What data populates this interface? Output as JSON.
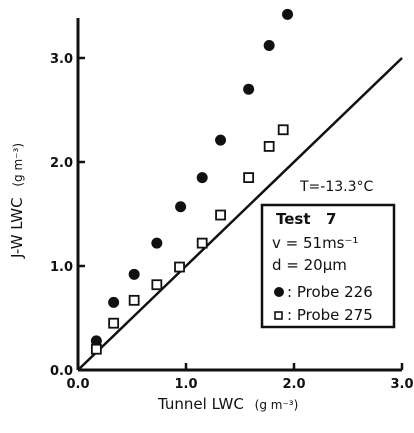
{
  "chart_data": {
    "type": "scatter",
    "xlabel": "Tunnel  LWC",
    "xlabel_unit": "(g m⁻³)",
    "ylabel": "J-W  LWC",
    "ylabel_unit": "(g m⁻³)",
    "xlim": [
      0,
      3.0
    ],
    "ylim": [
      0,
      3.4
    ],
    "x_ticks": [
      "0.0",
      "1.0",
      "2.0",
      "3.0"
    ],
    "y_ticks": [
      "0.0",
      "1.0",
      "2.0",
      "3.0"
    ],
    "grid": false,
    "annotation": "T=-13.3°C",
    "legend": {
      "placement": "right",
      "title": "Test",
      "test_number": "7",
      "v": "v = 51ms⁻¹",
      "d": "d = 20µm"
    },
    "reference_line": {
      "x": [
        0,
        3.0
      ],
      "y": [
        0,
        3.0
      ]
    },
    "series": [
      {
        "name": "Probe 226",
        "label": ": Probe 226",
        "marker": "filled-circle",
        "points": [
          [
            0.17,
            0.28
          ],
          [
            0.33,
            0.65
          ],
          [
            0.52,
            0.92
          ],
          [
            0.73,
            1.22
          ],
          [
            0.95,
            1.57
          ],
          [
            1.15,
            1.85
          ],
          [
            1.32,
            2.21
          ],
          [
            1.58,
            2.7
          ],
          [
            1.77,
            3.12
          ],
          [
            1.94,
            3.42
          ]
        ]
      },
      {
        "name": "Probe 275",
        "label": ": Probe 275",
        "marker": "open-square",
        "points": [
          [
            0.17,
            0.2
          ],
          [
            0.33,
            0.45
          ],
          [
            0.52,
            0.67
          ],
          [
            0.73,
            0.82
          ],
          [
            0.94,
            0.99
          ],
          [
            1.15,
            1.22
          ],
          [
            1.32,
            1.49
          ],
          [
            1.58,
            1.85
          ],
          [
            1.77,
            2.15
          ],
          [
            1.9,
            2.31
          ]
        ]
      }
    ]
  }
}
